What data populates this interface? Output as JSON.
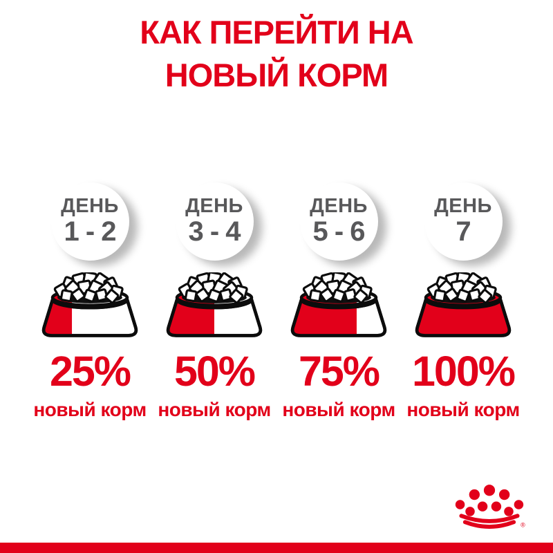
{
  "page": {
    "title_line1": "КАК ПЕРЕЙТИ НА",
    "title_line2": "НОВЫЙ КОРМ"
  },
  "colors": {
    "brand_red": "#e2001a",
    "day_text_gray": "#58585a",
    "bowl_outline_black": "#0c0c0c"
  },
  "steps": [
    {
      "day_label": "ДЕНЬ",
      "day_range": "1 - 2",
      "percent": "25%",
      "percent_value": 25,
      "caption": "новый корм"
    },
    {
      "day_label": "ДЕНЬ",
      "day_range": "3 - 4",
      "percent": "50%",
      "percent_value": 50,
      "caption": "новый корм"
    },
    {
      "day_label": "ДЕНЬ",
      "day_range": "5 - 6",
      "percent": "75%",
      "percent_value": 75,
      "caption": "новый корм"
    },
    {
      "day_label": "ДЕНЬ",
      "day_range": "7",
      "percent": "100%",
      "percent_value": 100,
      "caption": "новый корм"
    }
  ],
  "footer": {
    "logo_name": "royal-canin-crown-logo",
    "registered_mark": "®"
  }
}
